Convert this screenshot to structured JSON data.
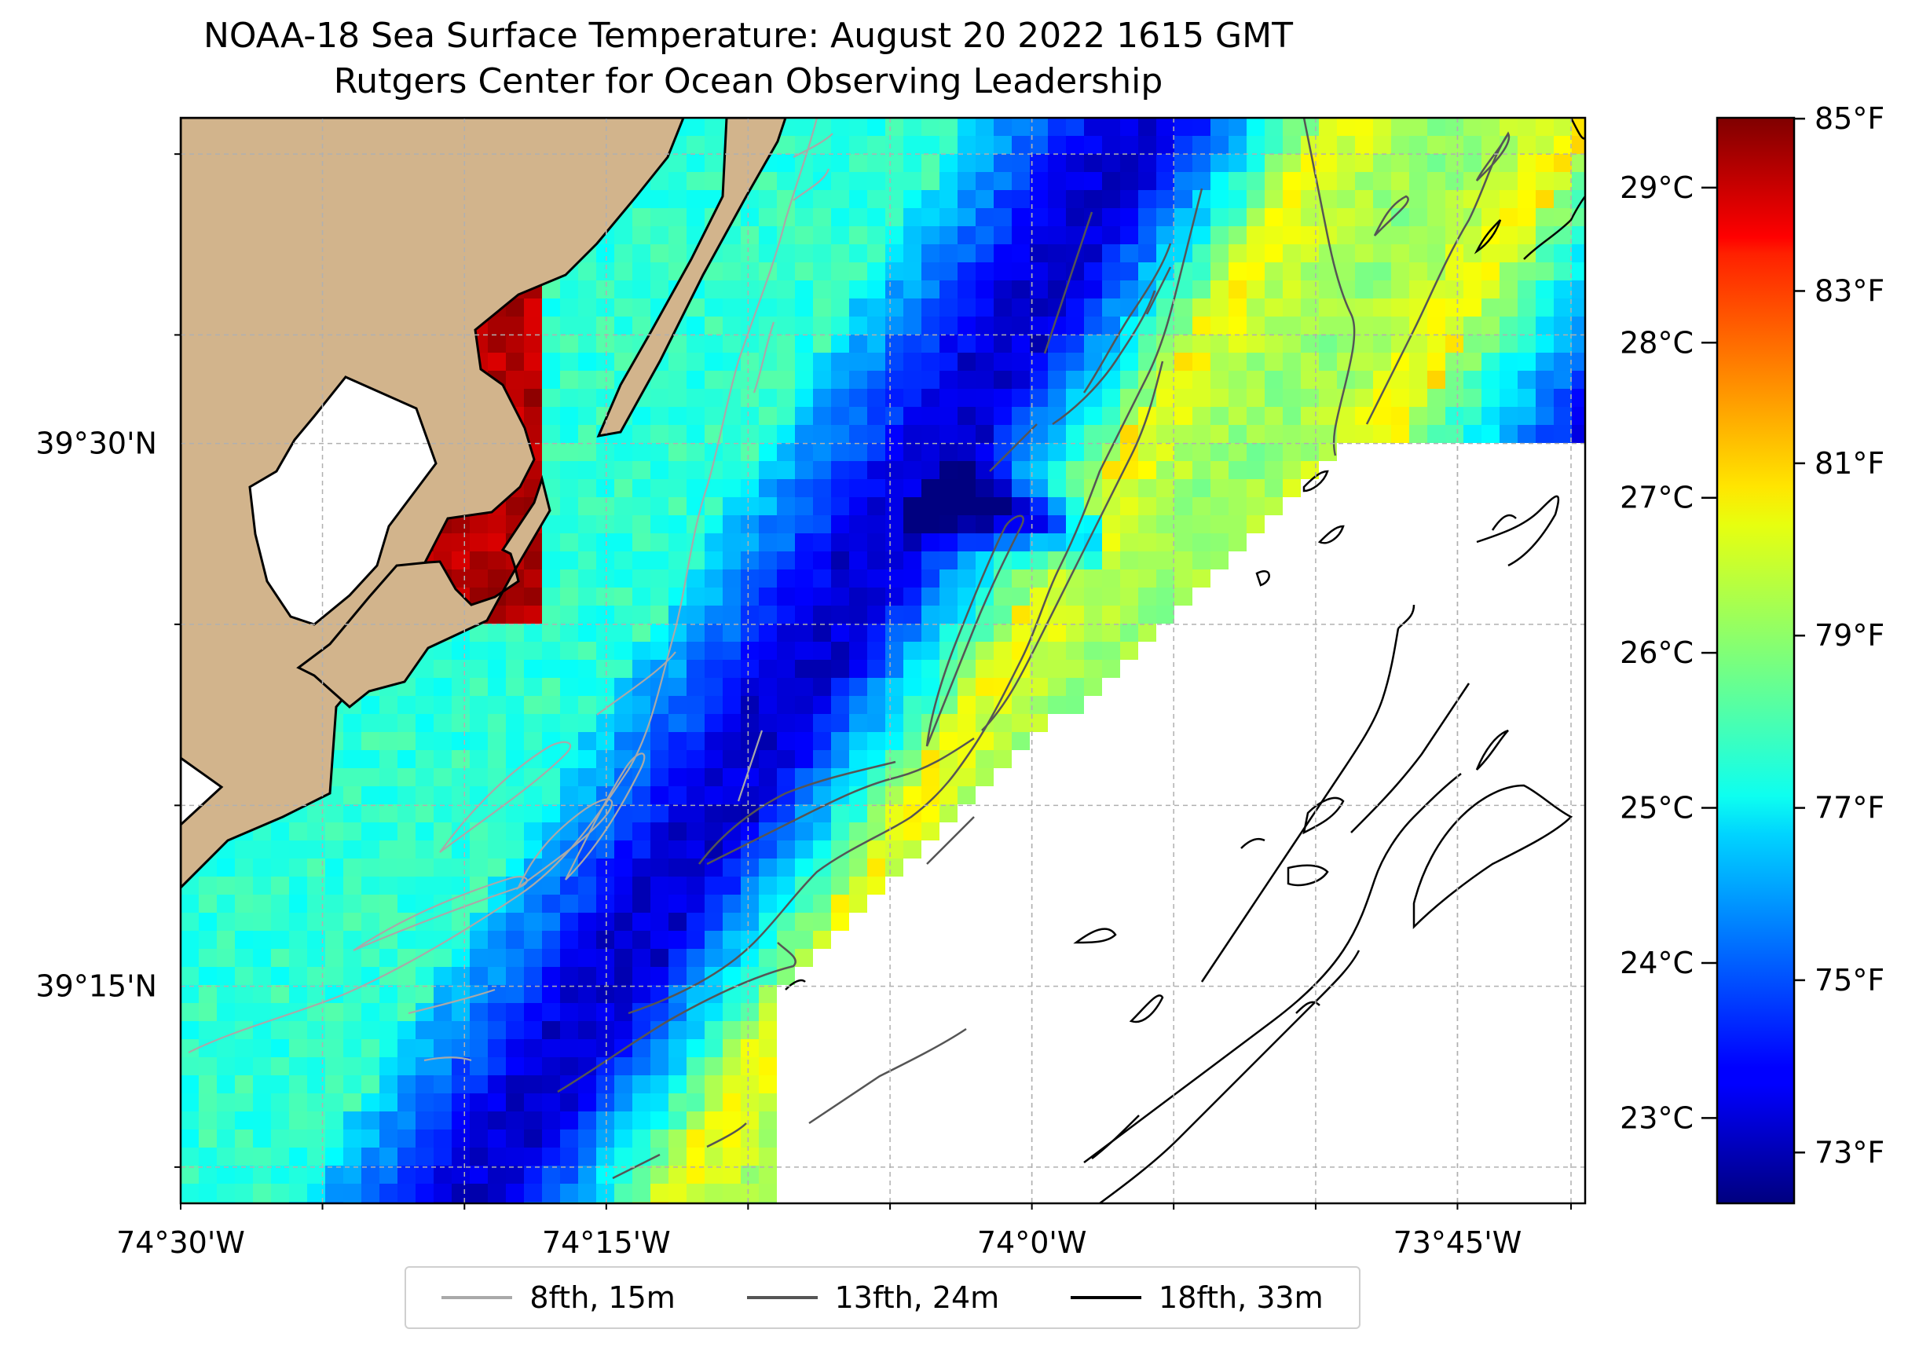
{
  "title": "NOAA-18 Sea Surface Temperature: August 20 2022 1615 GMT",
  "subtitle": "Rutgers Center for Ocean Observing Leadership",
  "map": {
    "lon_range": [
      -74.5,
      -73.675
    ],
    "lat_range": [
      39.15,
      39.65
    ],
    "lon_ticks": [
      {
        "value": -74.5,
        "label": "74°30'W"
      },
      {
        "value": -74.25,
        "label": "74°15'W"
      },
      {
        "value": -74.0,
        "label": "74°0'W"
      },
      {
        "value": -73.75,
        "label": "73°45'W"
      }
    ],
    "lat_ticks": [
      {
        "value": 39.5,
        "label": "39°30'N"
      },
      {
        "value": 39.25,
        "label": "39°15'N"
      }
    ],
    "land_color": "#d2b48c",
    "grid": true
  },
  "colorbar": {
    "colormap": "jet",
    "celsius_range": [
      22.45,
      29.45
    ],
    "celsius_ticks": [
      {
        "value": 23,
        "label": "23°C"
      },
      {
        "value": 24,
        "label": "24°C"
      },
      {
        "value": 25,
        "label": "25°C"
      },
      {
        "value": 26,
        "label": "26°C"
      },
      {
        "value": 27,
        "label": "27°C"
      },
      {
        "value": 28,
        "label": "28°C"
      },
      {
        "value": 29,
        "label": "29°C"
      }
    ],
    "fahrenheit_ticks": [
      {
        "value": 73,
        "label": "73°F"
      },
      {
        "value": 75,
        "label": "75°F"
      },
      {
        "value": 77,
        "label": "77°F"
      },
      {
        "value": 79,
        "label": "79°F"
      },
      {
        "value": 81,
        "label": "81°F"
      },
      {
        "value": 83,
        "label": "83°F"
      },
      {
        "value": 85,
        "label": "85°F"
      }
    ]
  },
  "legend": [
    {
      "label": "8fth, 15m",
      "color": "#a9a9a9"
    },
    {
      "label": "13fth, 24m",
      "color": "#555555"
    },
    {
      "label": "18fth, 33m",
      "color": "#000000"
    }
  ]
}
